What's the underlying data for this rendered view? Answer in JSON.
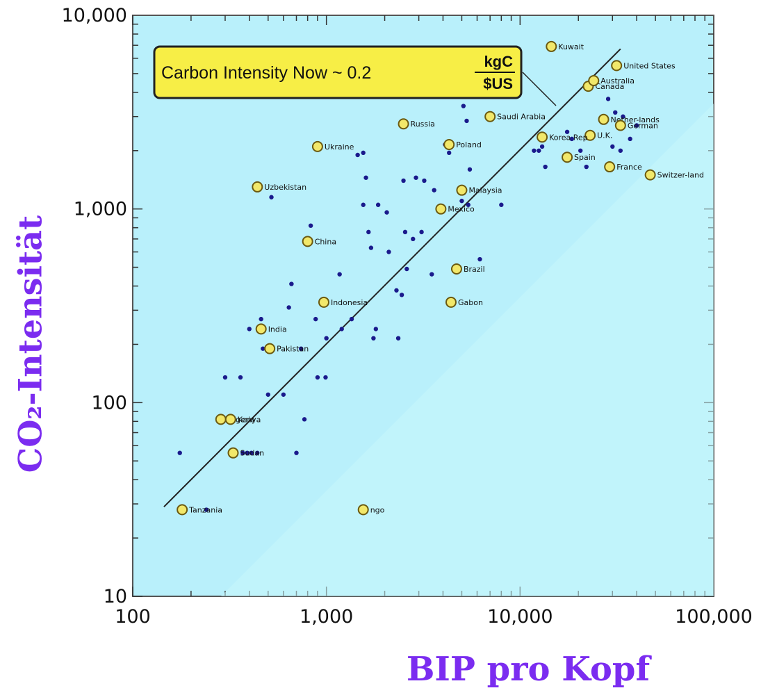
{
  "chart_data": {
    "type": "scatter",
    "title": "",
    "xlabel": "BIP pro Kopf",
    "ylabel": "CO₂-Intensität",
    "x_scale": "log",
    "y_scale": "log",
    "xlim": [
      100,
      100000
    ],
    "ylim": [
      10,
      10000
    ],
    "x_ticks": [
      "100",
      "1,000",
      "10,000",
      "100,000"
    ],
    "y_ticks": [
      "10",
      "100",
      "1,000",
      "10,000"
    ],
    "grid": false,
    "annotation": {
      "text": "Carbon Intensity Now ~ 0.2",
      "frac_num": "kgC",
      "frac_den": "$US"
    },
    "trend_line": {
      "label": "",
      "points": [
        [
          145,
          29
        ],
        [
          33000,
          6700
        ]
      ]
    },
    "labeled_points": [
      {
        "name": "Kuwait",
        "x": 14500,
        "y": 6900
      },
      {
        "name": "United States",
        "x": 31500,
        "y": 5500
      },
      {
        "name": "Canada",
        "x": 22500,
        "y": 4300
      },
      {
        "name": "Australia",
        "x": 24000,
        "y": 4600
      },
      {
        "name": "Nether-lands",
        "x": 27000,
        "y": 2900
      },
      {
        "name": "German",
        "x": 33000,
        "y": 2700
      },
      {
        "name": "U.K.",
        "x": 23000,
        "y": 2400
      },
      {
        "name": "Korea Rep",
        "x": 13000,
        "y": 2350
      },
      {
        "name": "Spain",
        "x": 17500,
        "y": 1850
      },
      {
        "name": "France",
        "x": 29000,
        "y": 1650
      },
      {
        "name": "Switzer-land",
        "x": 47000,
        "y": 1500
      },
      {
        "name": "Saudi Arabia",
        "x": 7000,
        "y": 3000
      },
      {
        "name": "Russia",
        "x": 2500,
        "y": 2750
      },
      {
        "name": "Poland",
        "x": 4300,
        "y": 2150
      },
      {
        "name": "Ukraine",
        "x": 900,
        "y": 2100
      },
      {
        "name": "Uzbekistan",
        "x": 440,
        "y": 1300
      },
      {
        "name": "Malaysia",
        "x": 5000,
        "y": 1250
      },
      {
        "name": "Mexico",
        "x": 3900,
        "y": 1000
      },
      {
        "name": "China",
        "x": 800,
        "y": 680
      },
      {
        "name": "Brazil",
        "x": 4700,
        "y": 490
      },
      {
        "name": "Gabon",
        "x": 4400,
        "y": 330
      },
      {
        "name": "Indonesia",
        "x": 970,
        "y": 330
      },
      {
        "name": "India",
        "x": 460,
        "y": 240
      },
      {
        "name": "Pakistan",
        "x": 510,
        "y": 190
      },
      {
        "name": "Nigeria",
        "x": 285,
        "y": 82
      },
      {
        "name": "Kenya",
        "x": 320,
        "y": 82
      },
      {
        "name": "Sudan",
        "x": 330,
        "y": 55
      },
      {
        "name": "Tanzania",
        "x": 180,
        "y": 28
      },
      {
        "name": "ngo",
        "x": 1550,
        "y": 28
      }
    ],
    "other_points": [
      [
        175,
        55
      ],
      [
        240,
        28
      ],
      [
        300,
        135
      ],
      [
        360,
        135
      ],
      [
        400,
        240
      ],
      [
        460,
        270
      ],
      [
        470,
        190
      ],
      [
        500,
        110
      ],
      [
        520,
        1150
      ],
      [
        370,
        55
      ],
      [
        390,
        55
      ],
      [
        410,
        55
      ],
      [
        440,
        55
      ],
      [
        600,
        110
      ],
      [
        640,
        310
      ],
      [
        660,
        410
      ],
      [
        700,
        55
      ],
      [
        740,
        190
      ],
      [
        770,
        82
      ],
      [
        830,
        820
      ],
      [
        880,
        270
      ],
      [
        900,
        135
      ],
      [
        990,
        135
      ],
      [
        1000,
        215
      ],
      [
        1170,
        460
      ],
      [
        1200,
        240
      ],
      [
        1350,
        270
      ],
      [
        1450,
        1900
      ],
      [
        1550,
        1950
      ],
      [
        1600,
        1450
      ],
      [
        1550,
        1050
      ],
      [
        1650,
        760
      ],
      [
        1700,
        630
      ],
      [
        1750,
        215
      ],
      [
        1800,
        240
      ],
      [
        1850,
        1050
      ],
      [
        2050,
        960
      ],
      [
        2100,
        600
      ],
      [
        2300,
        380
      ],
      [
        2350,
        215
      ],
      [
        2450,
        360
      ],
      [
        2500,
        1400
      ],
      [
        2550,
        760
      ],
      [
        2600,
        490
      ],
      [
        2800,
        700
      ],
      [
        2900,
        1450
      ],
      [
        3100,
        760
      ],
      [
        3200,
        1400
      ],
      [
        3500,
        460
      ],
      [
        3600,
        1250
      ],
      [
        4100,
        2150
      ],
      [
        4300,
        1950
      ],
      [
        5100,
        3400
      ],
      [
        5300,
        2850
      ],
      [
        5500,
        1600
      ],
      [
        5000,
        1100
      ],
      [
        5400,
        1050
      ],
      [
        6200,
        550
      ],
      [
        8000,
        1050
      ],
      [
        11800,
        2000
      ],
      [
        12500,
        2000
      ],
      [
        13000,
        2100
      ],
      [
        13500,
        1650
      ],
      [
        17500,
        2500
      ],
      [
        18500,
        2300
      ],
      [
        20500,
        2000
      ],
      [
        22000,
        1650
      ],
      [
        28500,
        3700
      ],
      [
        31000,
        3150
      ],
      [
        34000,
        3000
      ],
      [
        30000,
        2100
      ],
      [
        33000,
        2000
      ],
      [
        37000,
        2300
      ],
      [
        40000,
        2700
      ]
    ]
  }
}
